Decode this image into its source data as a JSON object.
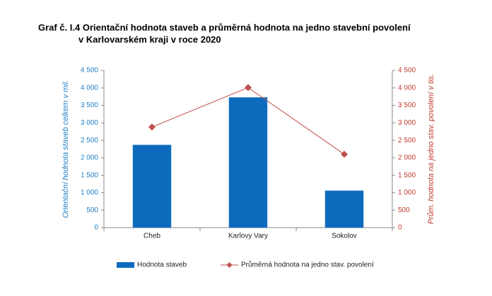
{
  "chart_data": {
    "type": "bar",
    "title": [
      "Graf č. I.4 Orientační hodnota staveb a průměrná hodnota na jedno stavební povolení",
      "v Karlovarském kraji v roce 2020"
    ],
    "categories": [
      "Cheb",
      "Karlovy Vary",
      "Sokolov"
    ],
    "series": [
      {
        "name": "Hodnota staveb",
        "type": "bar",
        "color": "#0c6bbd",
        "values": [
          2370,
          3730,
          1060
        ]
      },
      {
        "name": "Průměrná hodnota na jedno stav. povolení",
        "type": "line",
        "axis": "y2",
        "color": "#c0504d",
        "values": [
          2880,
          4010,
          2100
        ]
      }
    ],
    "y_label": "Orientační hodnota staveb celkem v mil.",
    "y2_label": "Prům. hodnota na jedno stav. povolení v tis.",
    "ylim": [
      0,
      4500
    ],
    "yticks": [
      0,
      500,
      {
        "value": 1000,
        "label": "1 000"
      },
      {
        "value": 1500,
        "label": "1 500"
      },
      {
        "value": 2000,
        "label": "2 000"
      },
      {
        "value": 2500,
        "label": "2 500"
      },
      {
        "value": 3000,
        "label": "3 000"
      },
      {
        "value": 3500,
        "label": "3 500"
      },
      {
        "value": 4000,
        "label": "4 000"
      },
      {
        "value": 4500,
        "label": "4 500"
      }
    ],
    "y2lim": [
      0,
      4500
    ],
    "y2ticks": [
      0,
      500,
      {
        "value": 1000,
        "label": "1 000"
      },
      {
        "value": 1500,
        "label": "1 500"
      },
      {
        "value": 2000,
        "label": "2 000"
      },
      {
        "value": 2500,
        "label": "2 500"
      },
      {
        "value": 3000,
        "label": "3 000"
      },
      {
        "value": 3500,
        "label": "3 500"
      },
      {
        "value": 4000,
        "label": "4 000"
      },
      {
        "value": 4500,
        "label": "4 500"
      }
    ],
    "y_color": "#1f7fc4",
    "y2_color": "#c0392b",
    "legend": "bottom"
  }
}
